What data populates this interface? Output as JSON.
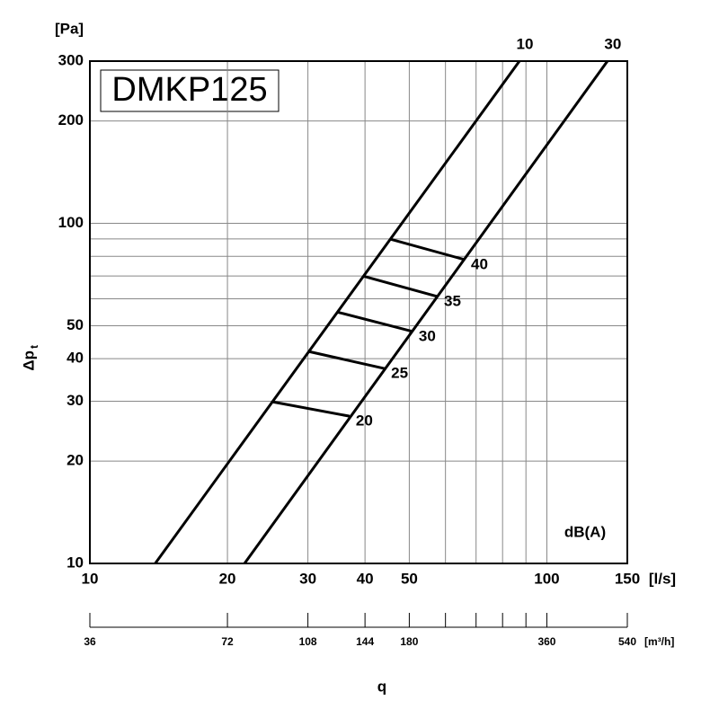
{
  "chart_data": {
    "type": "line",
    "title": "DMKP125",
    "x_label": "q",
    "x_unit": "[l/s]",
    "y_unit": "[Pa]",
    "y_label": "Δp",
    "y_label_sub": "t",
    "annotation": "dB(A)",
    "log_x": true,
    "log_y": true,
    "grid": true,
    "color": "#000000",
    "xlim": [
      10,
      150
    ],
    "xticks": [
      10,
      20,
      30,
      40,
      50,
      100,
      150
    ],
    "xminor": [
      60,
      70,
      80,
      90
    ],
    "ylim": [
      10,
      300
    ],
    "yticks": [
      10,
      20,
      30,
      40,
      50,
      100,
      200,
      300
    ],
    "yminor": [
      60,
      70,
      80,
      90
    ],
    "x2_unit": "[m³/h]",
    "x2lim": [
      36,
      540
    ],
    "x2ticks": [
      36,
      72,
      108,
      144,
      180,
      360,
      540
    ],
    "x2minor": [
      216,
      252,
      288,
      324
    ],
    "series": [
      {
        "name": "10",
        "color": "#000000",
        "x": [
          13.9,
          87.1
        ],
        "values": [
          10,
          300
        ]
      },
      {
        "name": "30",
        "color": "#000000",
        "x": [
          21.8,
          135.7
        ],
        "values": [
          10,
          300
        ]
      },
      {
        "name": "20",
        "color": "#000000",
        "x": [
          25.0,
          37.0
        ],
        "values": [
          29.9,
          27.1
        ]
      },
      {
        "name": "25",
        "color": "#000000",
        "x": [
          30.1,
          44.2
        ],
        "values": [
          42.0,
          37.4
        ]
      },
      {
        "name": "30",
        "color": "#000000",
        "x": [
          34.7,
          50.8
        ],
        "values": [
          54.9,
          48.1
        ]
      },
      {
        "name": "35",
        "color": "#000000",
        "x": [
          39.6,
          57.7
        ],
        "values": [
          70.0,
          60.9
        ]
      },
      {
        "name": "40",
        "color": "#000000",
        "x": [
          45.4,
          66.1
        ],
        "values": [
          89.9,
          78.2
        ]
      }
    ]
  }
}
